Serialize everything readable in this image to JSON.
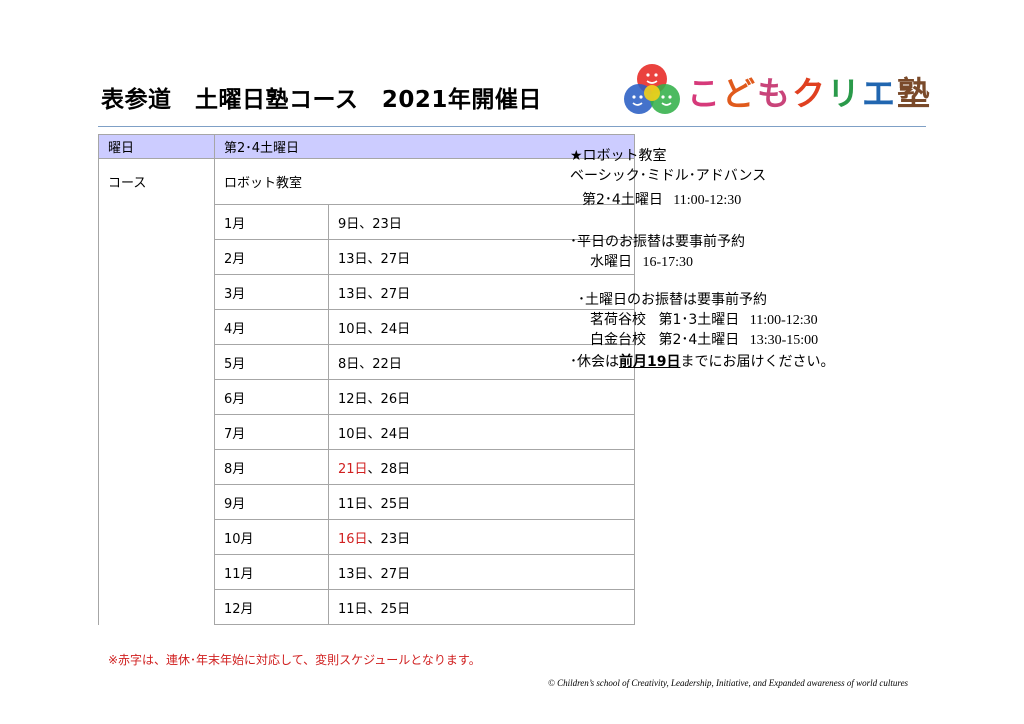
{
  "title": "表参道　土曜日塾コース　2021年開催日",
  "logo": {
    "text": "こどもクリエ塾",
    "chars": [
      "こ",
      "ど",
      "も",
      "ク",
      "リ",
      "エ",
      "塾"
    ],
    "colors": [
      "#d63a7a",
      "#e05a1c",
      "#c9447a",
      "#e04020",
      "#2a9a4a",
      "#2166b0",
      "#7a4a2a"
    ]
  },
  "table": {
    "header": {
      "label": "曜日",
      "value": "第2･4土曜日"
    },
    "course": {
      "label": "コース",
      "value": "ロボット教室"
    },
    "months": [
      {
        "month": "1月",
        "first": "9日",
        "rest": "、23日",
        "red": false
      },
      {
        "month": "2月",
        "first": "13日",
        "rest": "、27日",
        "red": false
      },
      {
        "month": "3月",
        "first": "13日",
        "rest": "、27日",
        "red": false
      },
      {
        "month": "4月",
        "first": "10日",
        "rest": "、24日",
        "red": false
      },
      {
        "month": "5月",
        "first": "8日",
        "rest": "、22日",
        "red": false
      },
      {
        "month": "6月",
        "first": "12日",
        "rest": "、26日",
        "red": false
      },
      {
        "month": "7月",
        "first": "10日",
        "rest": "、24日",
        "red": false
      },
      {
        "month": "8月",
        "first": "21日",
        "rest": "、28日",
        "red": true
      },
      {
        "month": "9月",
        "first": "11日",
        "rest": "、25日",
        "red": false
      },
      {
        "month": "10月",
        "first": "16日",
        "rest": "、23日",
        "red": true
      },
      {
        "month": "11月",
        "first": "13日",
        "rest": "、27日",
        "red": false
      },
      {
        "month": "12月",
        "first": "11日",
        "rest": "、25日",
        "red": false
      }
    ]
  },
  "note": "※赤字は、連休･年末年始に対応して、変則スケジュールとなります。",
  "info": {
    "heading": "★ロボット教室",
    "levels": "ベーシック･ミドル･アドバンス",
    "schedule_day": "第2･4土曜日",
    "schedule_time": "11:00-12:30",
    "weekday_transfer": "･平日のお振替は要事前予約",
    "wed_day": "水曜日",
    "wed_time": "16-17:30",
    "saturday_transfer": "･土曜日のお振替は要事前予約",
    "school1_name": "茗荷谷校",
    "school1_day": "第1･3土曜日",
    "school1_time": "11:00-12:30",
    "school2_name": "白金台校",
    "school2_day": "第2･4土曜日",
    "school2_time": "13:30-15:00",
    "absence_pre": "･休会は",
    "absence_bold": "前月19日",
    "absence_post": "までにお届けください。"
  },
  "copyright": "©  Children’s school of Creativity, Leadership, Initiative, and Expanded awareness of world cultures"
}
